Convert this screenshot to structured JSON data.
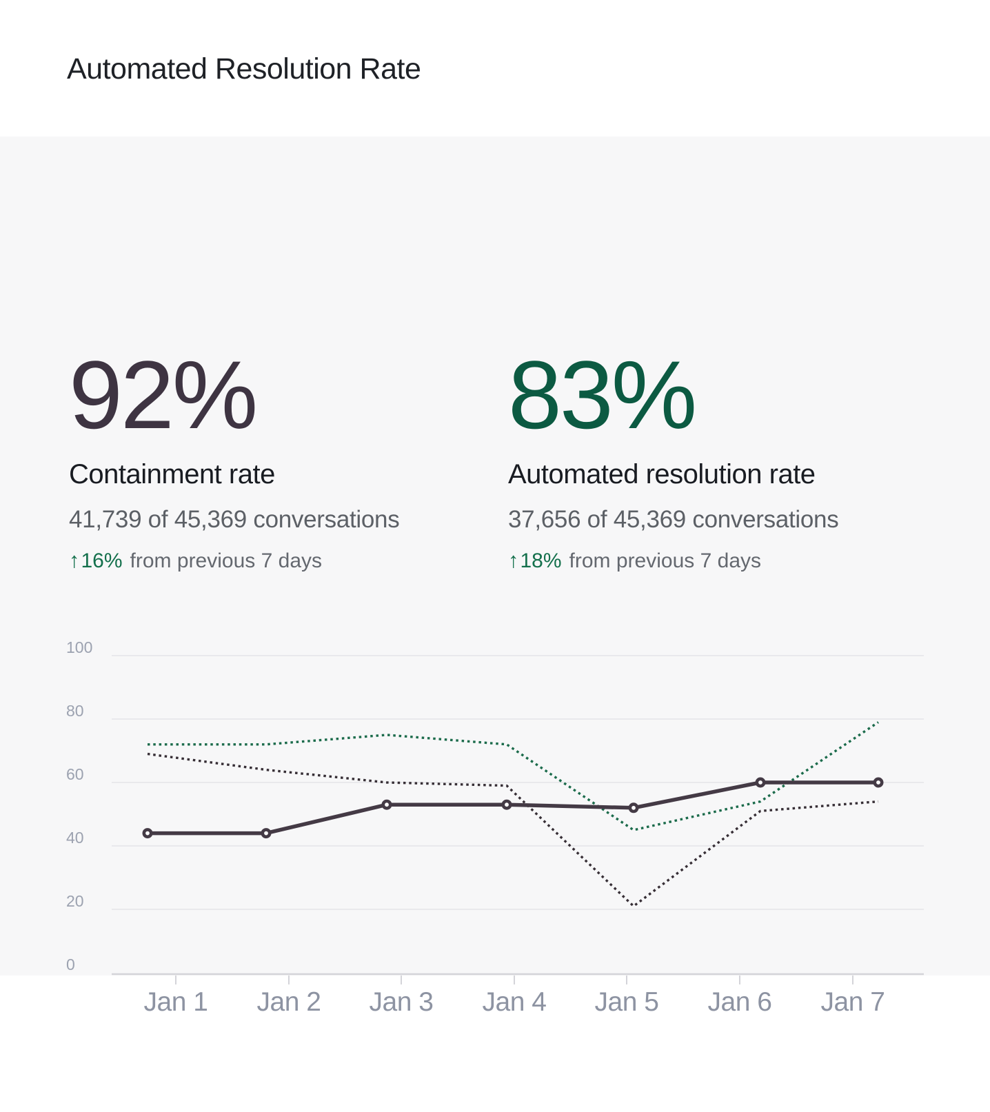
{
  "header": {
    "title": "Automated Resolution Rate"
  },
  "stats": [
    {
      "value": "92%",
      "value_color": "#3e3442",
      "label": "Containment rate",
      "detail": "41,739 of 45,369 conversations",
      "delta_arrow": "↑",
      "delta_value": "16%",
      "delta_color": "#14704c",
      "delta_suffix": "from previous 7 days"
    },
    {
      "value": "83%",
      "value_color": "#0c5a42",
      "label": "Automated resolution rate",
      "detail": "37,656 of 45,369 conversations",
      "delta_arrow": "↑",
      "delta_value": "18%",
      "delta_color": "#14704c",
      "delta_suffix": "from previous 7 days"
    }
  ],
  "chart_data": {
    "type": "line",
    "title": "",
    "xlabel": "",
    "ylabel": "",
    "categories": [
      "Jan 1",
      "Jan 2",
      "Jan 3",
      "Jan 4",
      "Jan 5",
      "Jan 6",
      "Jan 7"
    ],
    "y_ticks": [
      0,
      20,
      40,
      60,
      80,
      100
    ],
    "ylim": [
      0,
      100
    ],
    "grid": true,
    "legend": false,
    "series": [
      {
        "name": "containment-rate-current",
        "line_style": "solid",
        "markers": true,
        "color": "#443a45",
        "marker_fill": "#ffffff",
        "values": [
          44,
          44,
          53,
          53,
          52,
          60,
          60
        ]
      },
      {
        "name": "resolution-rate-dotted-green",
        "line_style": "dotted",
        "markers": false,
        "color": "#1b6b4b",
        "values": [
          72,
          72,
          75,
          72,
          45,
          54,
          79
        ]
      },
      {
        "name": "previous-period-dotted-dark",
        "line_style": "dotted",
        "markers": false,
        "color": "#362e35",
        "values": [
          69,
          64,
          60,
          59,
          21,
          51,
          54
        ]
      }
    ],
    "axis_colors": {
      "grid": "#e9e9ec",
      "axis": "#d4d4d9",
      "y_label": "#9ca2b0",
      "x_label": "#8d93a2"
    }
  }
}
